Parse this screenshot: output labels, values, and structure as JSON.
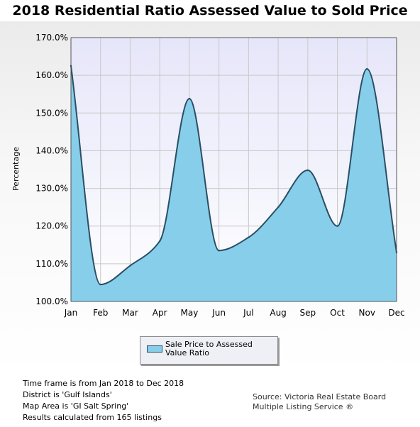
{
  "title": "2018 Residential Ratio Assessed Value to Sold Price",
  "legend": {
    "label": "Sale Price to Assessed Value Ratio"
  },
  "footer": {
    "lines": [
      "Time frame is from Jan 2018 to Dec 2018",
      "District is 'Gulf Islands'",
      "Map Area is 'GI Salt Spring'",
      "Results calculated from 165 listings"
    ],
    "source": [
      "Source: Victoria Real Estate Board",
      "Multiple Listing Service ®"
    ]
  },
  "colors": {
    "fill": "#87ceeb",
    "line": "#2a4f63",
    "plot_bg_top": "#e6e6fa",
    "plot_bg_bottom": "#ffffff",
    "grid": "#c8c8c8"
  },
  "chart_data": {
    "type": "area",
    "title": "2018 Residential Ratio Assessed Value to Sold Price",
    "xlabel": "",
    "ylabel": "Percentage",
    "ylim": [
      100,
      170
    ],
    "yticks": [
      100,
      110,
      120,
      130,
      140,
      150,
      160,
      170
    ],
    "ytick_labels": [
      "100.0%",
      "110.0%",
      "120.0%",
      "130.0%",
      "140.0%",
      "150.0%",
      "160.0%",
      "170.0%"
    ],
    "categories": [
      "Jan",
      "Feb",
      "Mar",
      "Apr",
      "May",
      "Jun",
      "Jul",
      "Aug",
      "Sep",
      "Oct",
      "Nov",
      "Dec"
    ],
    "series": [
      {
        "name": "Sale Price to Assessed Value Ratio",
        "values": [
          162.5,
          104.5,
          109.5,
          116,
          153.8,
          113.5,
          117,
          125,
          134.8,
          120,
          161.7,
          113
        ]
      }
    ],
    "grid": true,
    "legend_position": "bottom"
  }
}
